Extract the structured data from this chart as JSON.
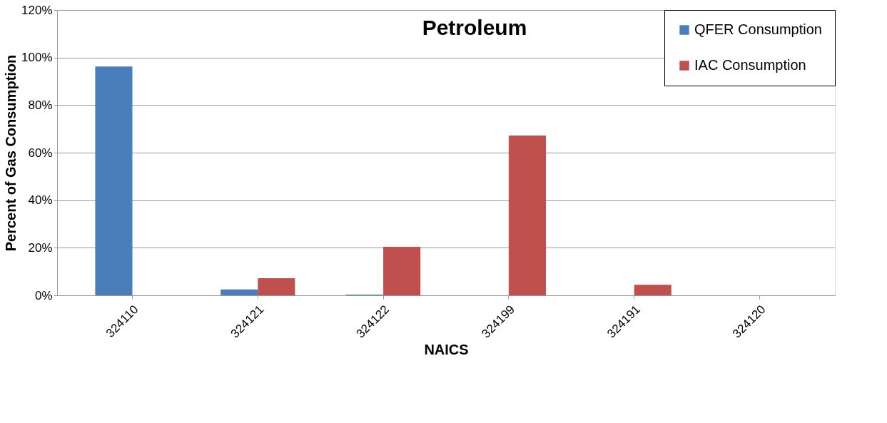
{
  "chart_data": {
    "type": "bar",
    "title": "Petroleum",
    "xlabel": "NAICS",
    "ylabel": "Percent of Gas Consumption",
    "categories": [
      "324110",
      "324121",
      "324122",
      "324199",
      "324191",
      "324120"
    ],
    "series": [
      {
        "name": "QFER Consumption",
        "color": "#4a7ebb",
        "values": [
          96.2,
          2.5,
          0.3,
          null,
          null,
          0
        ]
      },
      {
        "name": "IAC Consumption",
        "color": "#c0504d",
        "values": [
          0,
          7.2,
          20.4,
          67.2,
          4.4,
          0
        ]
      }
    ],
    "ylim": [
      0,
      120
    ],
    "yticks": [
      {
        "value": 0,
        "label": "0%"
      },
      {
        "value": 20,
        "label": "20%"
      },
      {
        "value": 40,
        "label": "40%"
      },
      {
        "value": 60,
        "label": "60%"
      },
      {
        "value": 80,
        "label": "80%"
      },
      {
        "value": 100,
        "label": "100%"
      },
      {
        "value": 120,
        "label": "120%"
      }
    ],
    "grid": "y",
    "legend": "top right"
  }
}
